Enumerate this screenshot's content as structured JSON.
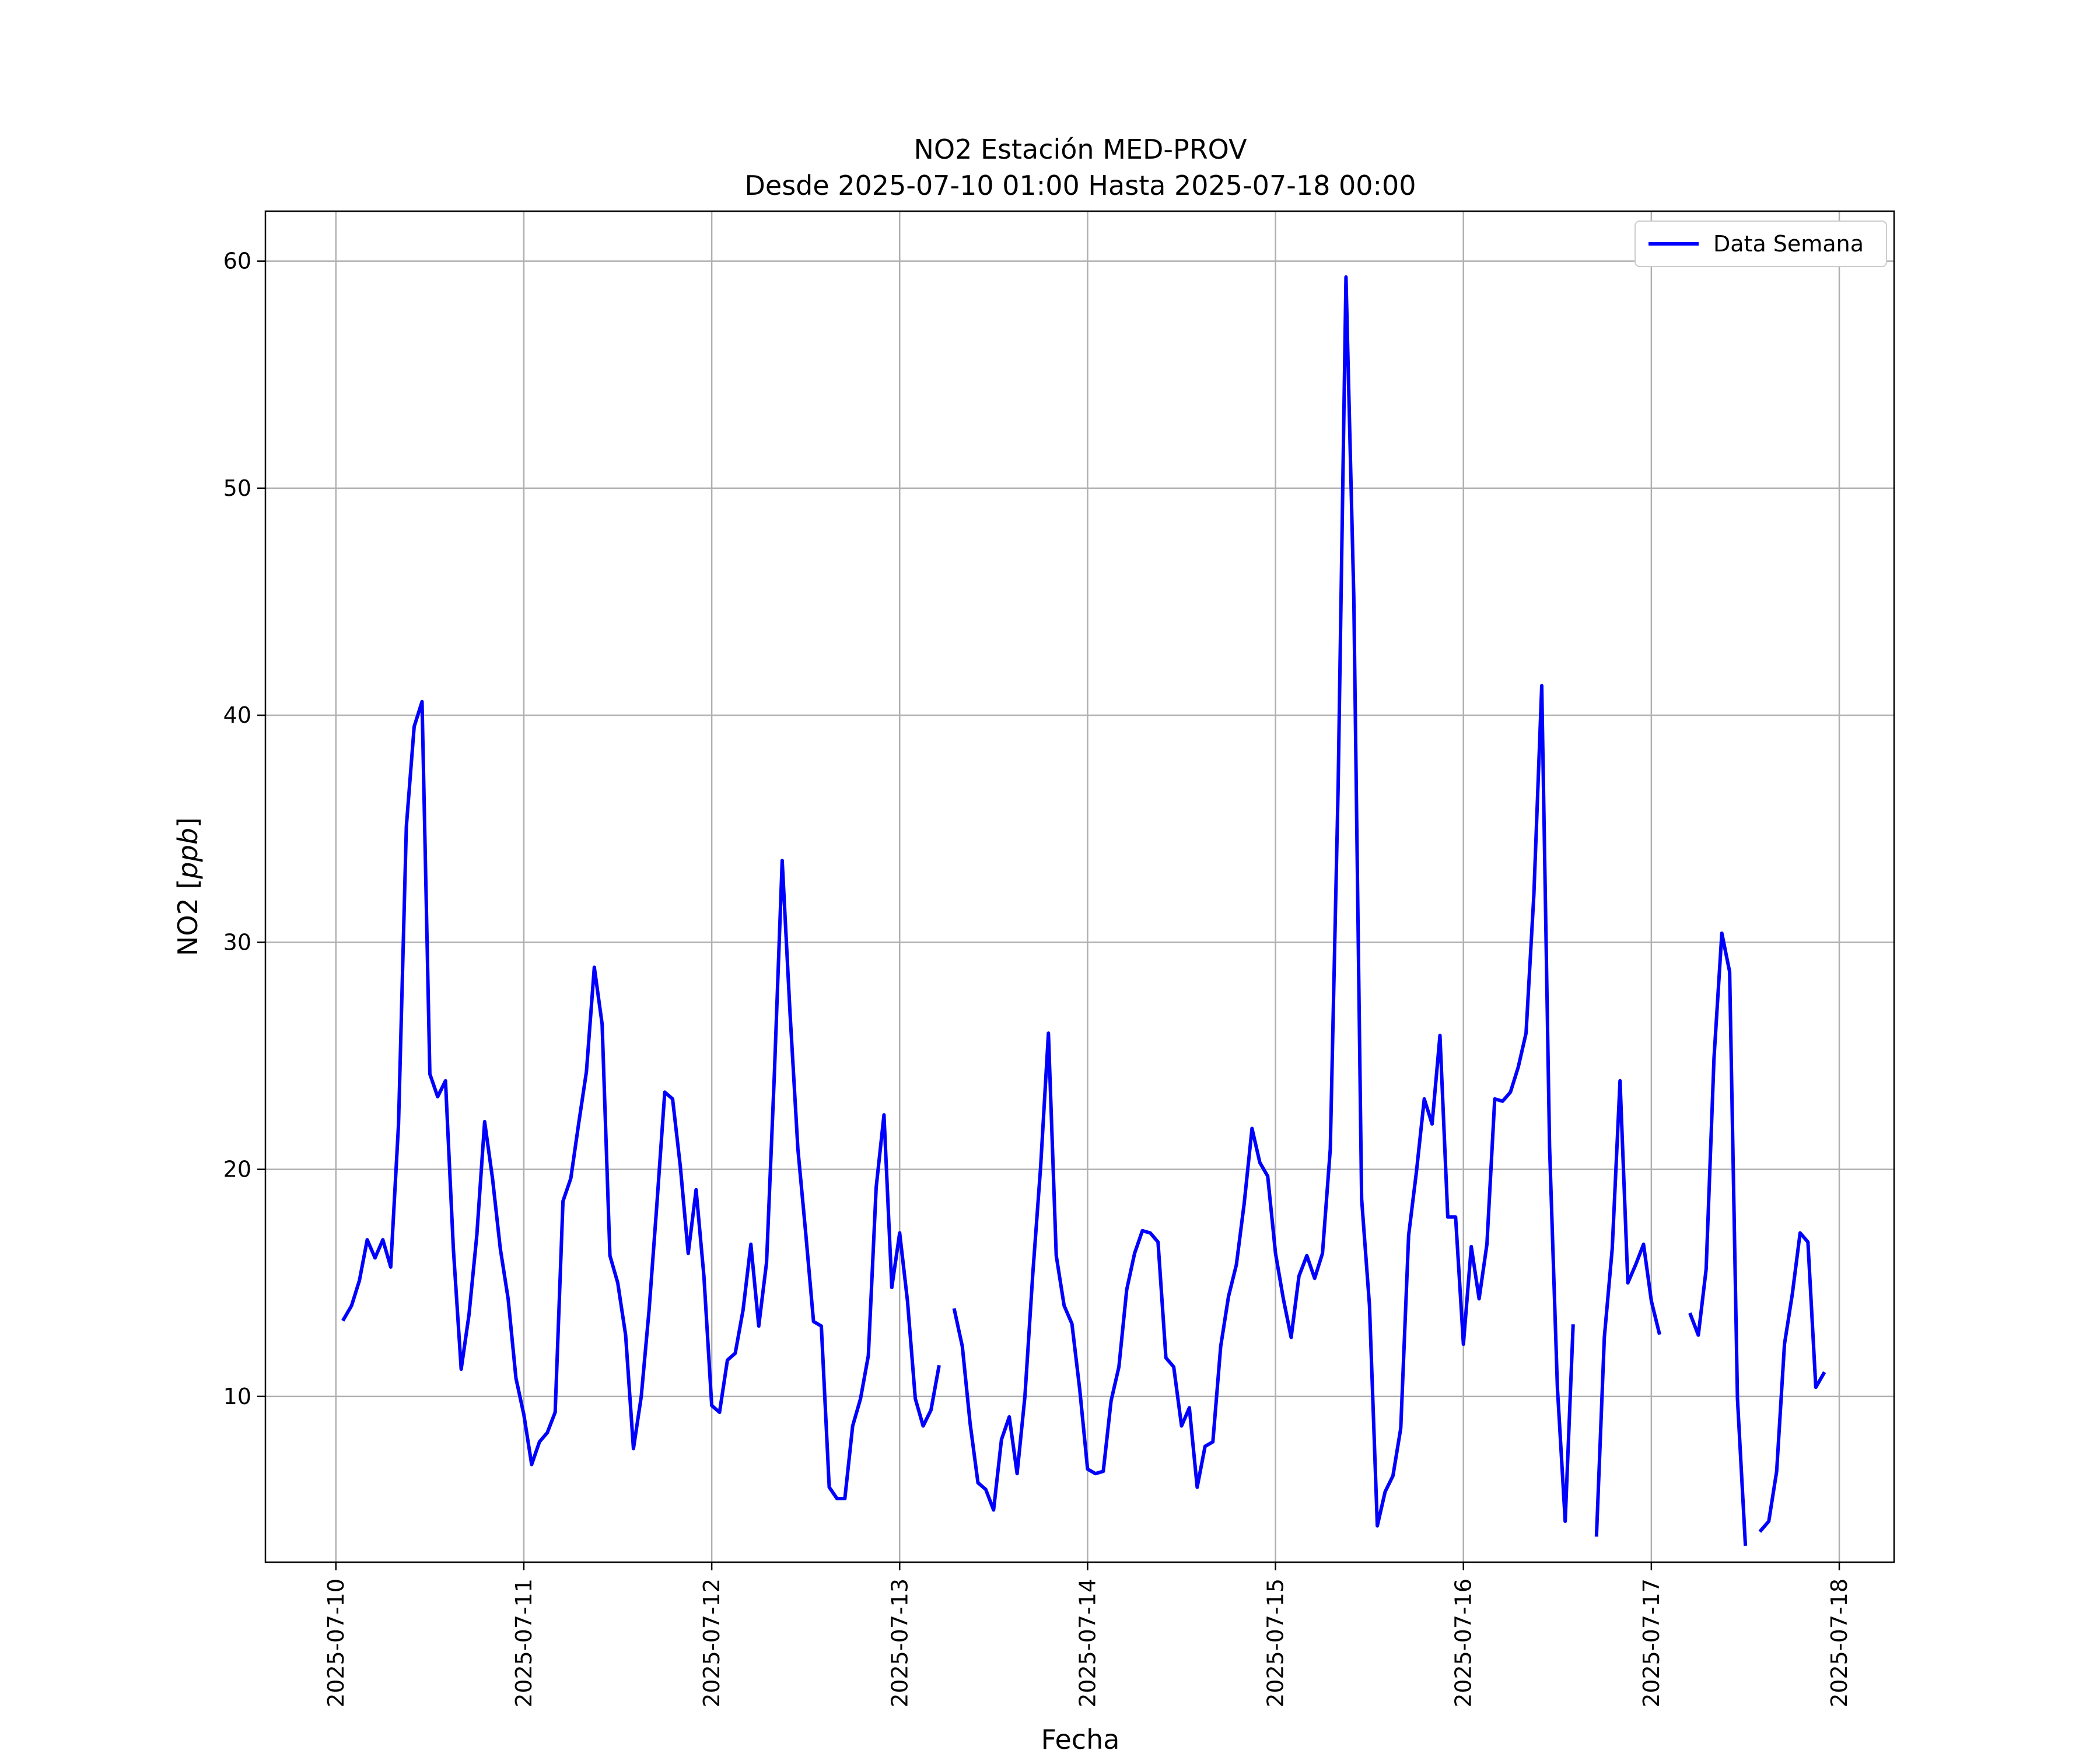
{
  "chart_data": {
    "type": "line",
    "title": "NO2 Estación MED-PROV",
    "subtitle": "Desde 2025-07-10 01:00 Hasta 2025-07-18 00:00",
    "xlabel": "Fecha",
    "ylabel": "NO2 [ppb]",
    "ylabel_main": "NO2 [",
    "ylabel_unit": "ppb",
    "ylabel_close": "]",
    "xlim": [
      "2025-07-09 15:00",
      "2025-07-18 07:00"
    ],
    "ylim": [
      2.7,
      62.2
    ],
    "x_ticks": [
      "2025-07-10",
      "2025-07-11",
      "2025-07-12",
      "2025-07-13",
      "2025-07-14",
      "2025-07-15",
      "2025-07-16",
      "2025-07-17",
      "2025-07-18"
    ],
    "y_ticks": [
      10,
      20,
      30,
      40,
      50,
      60
    ],
    "grid": true,
    "legend_position": "top-right",
    "series": [
      {
        "name": "Data Semana",
        "color": "#0000ff",
        "start": "2025-07-10 01:00",
        "step_hours": 1,
        "values": [
          13.4,
          14.0,
          15.1,
          16.9,
          16.1,
          16.9,
          15.7,
          22.0,
          35.1,
          39.5,
          40.6,
          24.2,
          23.2,
          23.9,
          16.5,
          11.2,
          13.6,
          17.1,
          22.1,
          19.6,
          16.5,
          14.3,
          10.8,
          9.2,
          7.0,
          8.0,
          8.4,
          9.3,
          18.6,
          19.6,
          22.0,
          24.3,
          28.9,
          26.4,
          16.2,
          15.0,
          12.7,
          7.7,
          10.0,
          13.8,
          18.5,
          23.4,
          23.1,
          20.1,
          16.3,
          19.1,
          15.3,
          9.6,
          9.3,
          11.6,
          11.9,
          13.8,
          16.7,
          13.1,
          15.9,
          24.2,
          33.6,
          26.9,
          20.9,
          17.2,
          13.3,
          13.1,
          6.0,
          5.5,
          5.5,
          8.7,
          9.9,
          11.8,
          19.2,
          22.4,
          14.8,
          17.2,
          14.2,
          9.9,
          8.7,
          9.4,
          11.3,
          null,
          13.8,
          12.2,
          8.8,
          6.2,
          5.9,
          5.0,
          8.1,
          9.1,
          6.6,
          10.0,
          15.4,
          20.1,
          26.0,
          16.2,
          14.0,
          13.2,
          10.3,
          6.8,
          6.6,
          6.7,
          9.8,
          11.3,
          14.7,
          16.3,
          17.3,
          17.2,
          16.8,
          11.7,
          11.3,
          8.7,
          9.5,
          6.0,
          7.8,
          8.0,
          12.2,
          14.4,
          15.8,
          18.5,
          21.8,
          20.3,
          19.7,
          16.3,
          14.3,
          12.6,
          15.3,
          16.2,
          15.2,
          16.3,
          20.9,
          36.9,
          59.3,
          45.2,
          18.7,
          14.0,
          4.3,
          5.8,
          6.5,
          8.6,
          17.1,
          19.9,
          23.1,
          22.0,
          25.9,
          17.9,
          17.9,
          12.3,
          16.6,
          14.3,
          16.7,
          23.1,
          23.0,
          23.4,
          24.5,
          26.0,
          32.1,
          41.3,
          21.0,
          10.4,
          4.5,
          13.1,
          null,
          null,
          3.9,
          12.6,
          16.5,
          23.9,
          15.0,
          15.8,
          16.7,
          14.2,
          12.8,
          null,
          null,
          null,
          13.6,
          12.7,
          15.6,
          24.9,
          30.4,
          28.7,
          9.9,
          3.5,
          null,
          4.1,
          4.5,
          6.7,
          12.3,
          14.5,
          17.2,
          16.8,
          10.4,
          11.0
        ]
      }
    ]
  }
}
